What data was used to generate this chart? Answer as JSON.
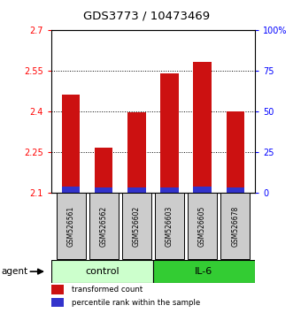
{
  "title": "GDS3773 / 10473469",
  "samples": [
    "GSM526561",
    "GSM526562",
    "GSM526602",
    "GSM526603",
    "GSM526605",
    "GSM526678"
  ],
  "transformed_counts": [
    2.46,
    2.265,
    2.395,
    2.54,
    2.58,
    2.4
  ],
  "percentile_heights": [
    0.023,
    0.018,
    0.018,
    0.02,
    0.022,
    0.02
  ],
  "ymin": 2.1,
  "ymax": 2.7,
  "yticks_left": [
    2.1,
    2.25,
    2.4,
    2.55,
    2.7
  ],
  "yticks_right": [
    0,
    25,
    50,
    75,
    100
  ],
  "bar_width": 0.55,
  "red_color": "#cc1111",
  "blue_color": "#3333cc",
  "control_color": "#ccffcc",
  "il6_color": "#33cc33",
  "bg_color": "#cccccc",
  "legend_red": "transformed count",
  "legend_blue": "percentile rank within the sample",
  "agent_label": "agent",
  "grid_lines": [
    2.55,
    2.4,
    2.25
  ],
  "figwidth": 3.31,
  "figheight": 3.54,
  "dpi": 100
}
